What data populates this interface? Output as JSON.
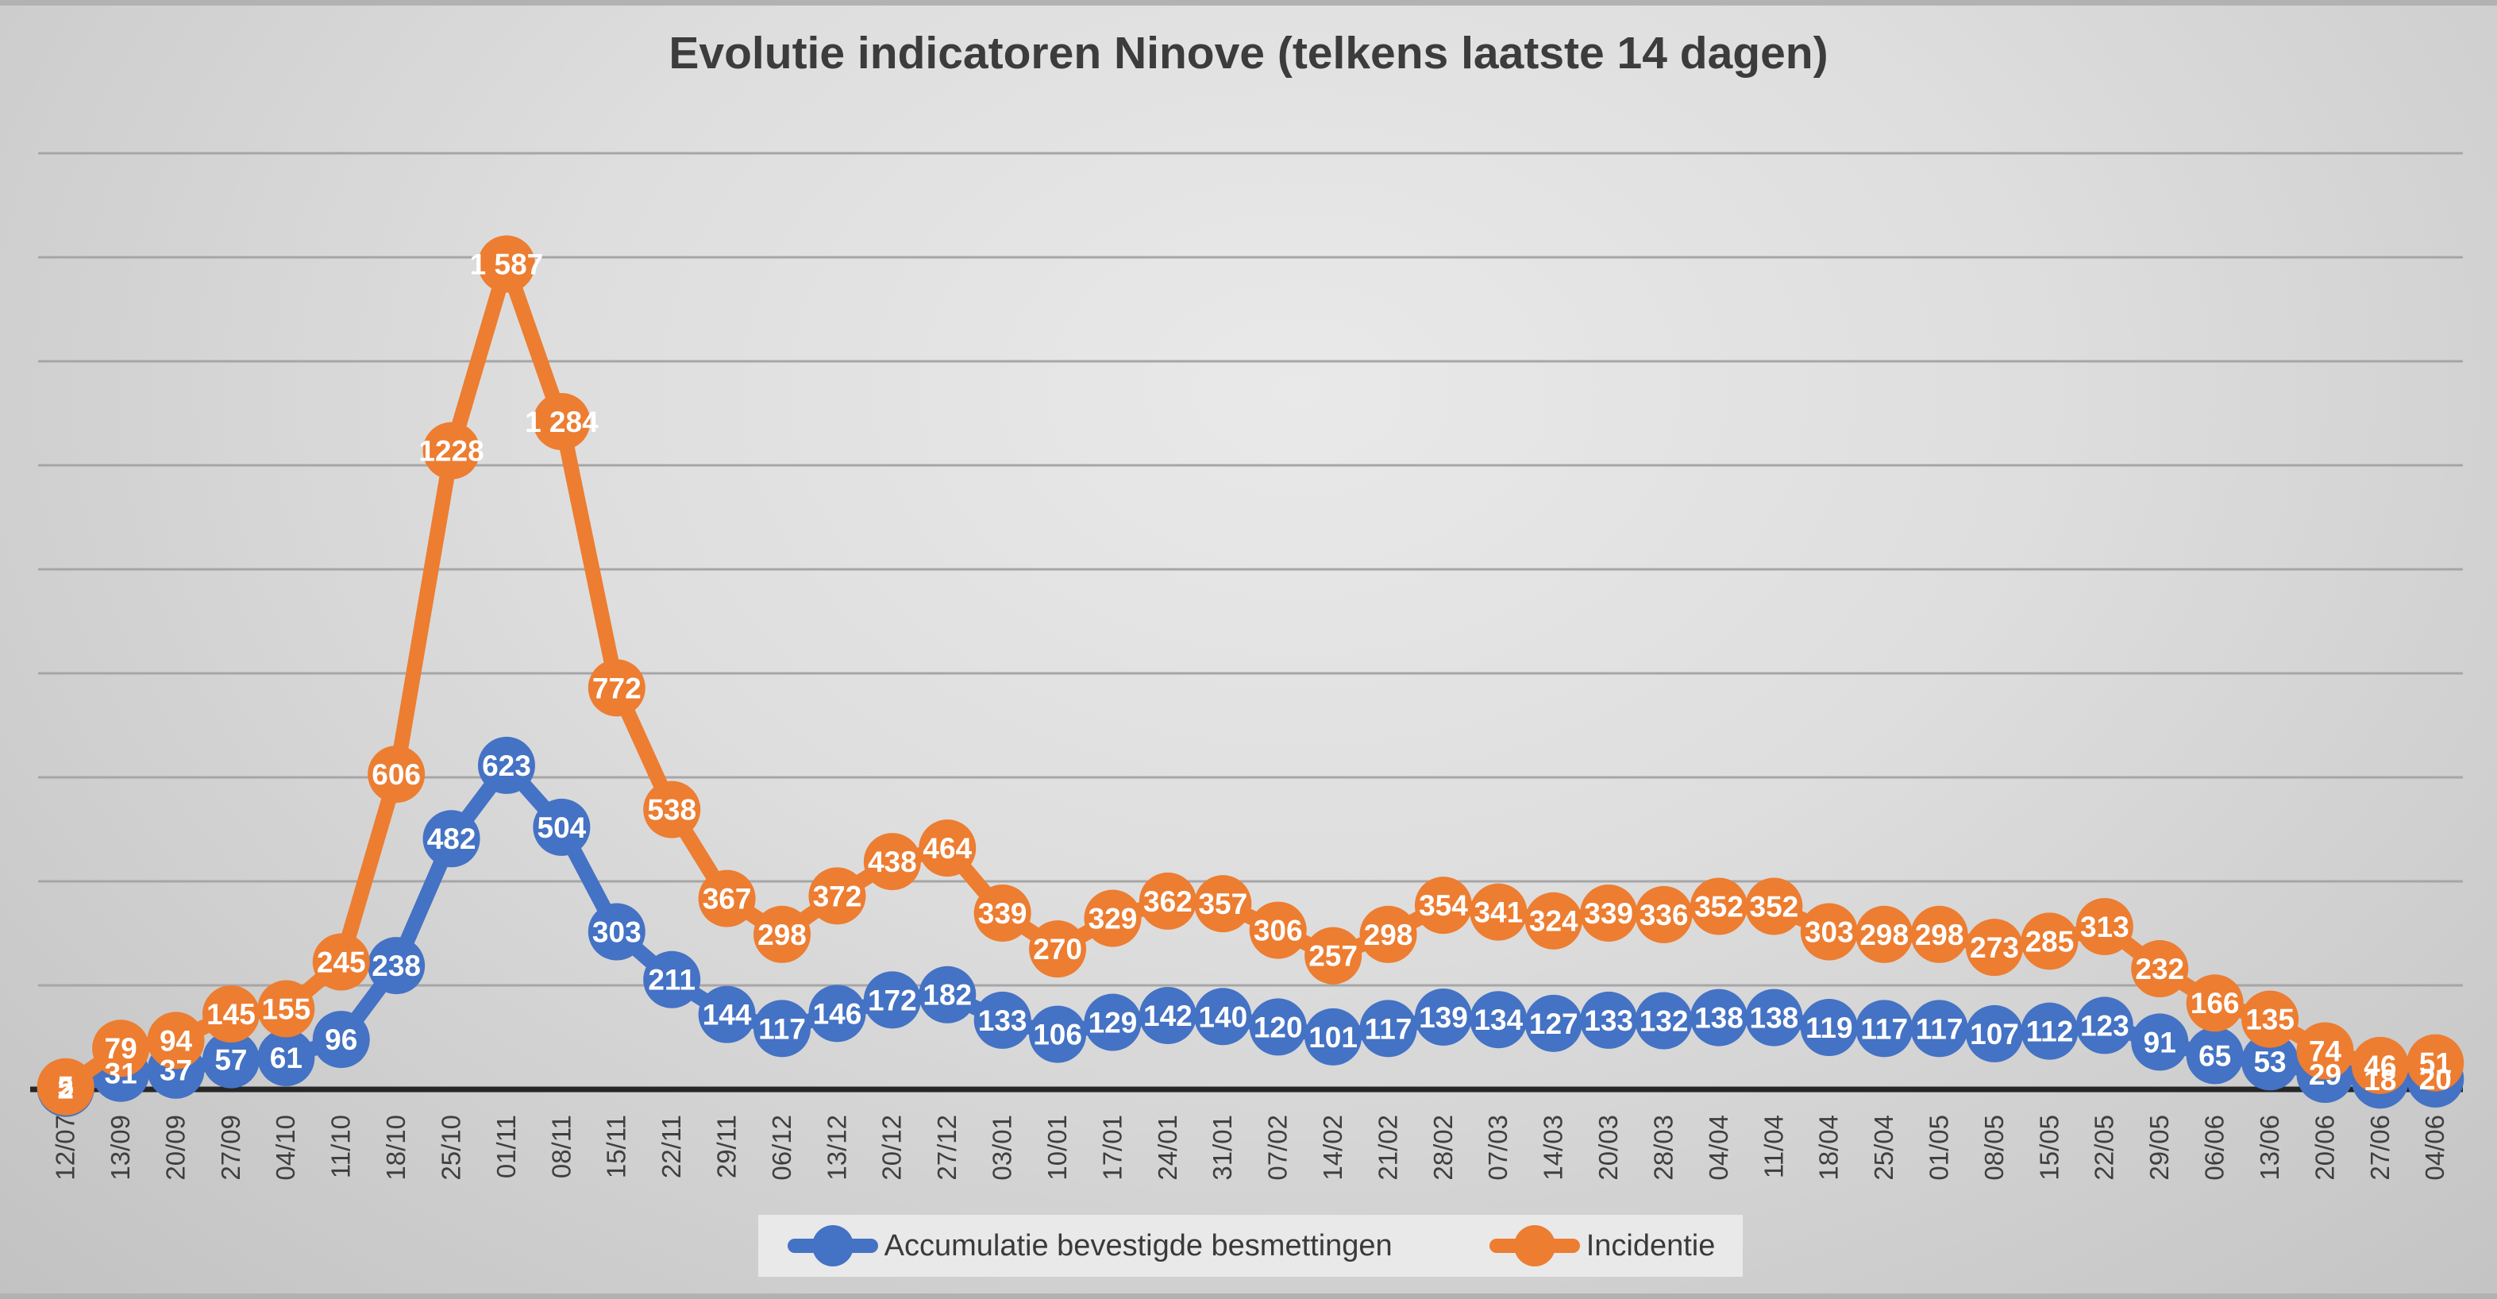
{
  "chart": {
    "title": "Evolutie indicatoren Ninove (telkens laatste 14 dagen)"
  },
  "legend": {
    "position": "bottom",
    "items": [
      {
        "label": "Accumulatie bevestigde besmettingen",
        "color": "#4472C4"
      },
      {
        "label": "Incidentie",
        "color": "#ED7D31"
      }
    ]
  },
  "colors": {
    "blue": "#4472C4",
    "orange": "#ED7D31",
    "grid": "#A6A6A6",
    "axis": "#262626",
    "tick_text": "#3f3f3f",
    "data_label_text": "#FFFFFF",
    "legend_bg": "#E9E9E9",
    "title_text": "#3C3C3C"
  },
  "chart_data": {
    "type": "line",
    "title": "Evolutie indicatoren Ninove (telkens laatste 14 dagen)",
    "xlabel": "",
    "ylabel": "",
    "ylim": [
      0,
      1800
    ],
    "y_gridline_step": 200,
    "grid": "on",
    "y_axis_labels": "hidden",
    "data_labels": "on",
    "legend_position": "bottom",
    "marker_style": "large-circle",
    "categories": [
      "12/07",
      "13/09",
      "20/09",
      "27/09",
      "04/10",
      "11/10",
      "18/10",
      "25/10",
      "01/11",
      "08/11",
      "15/11",
      "22/11",
      "29/11",
      "06/12",
      "13/12",
      "20/12",
      "27/12",
      "03/01",
      "10/01",
      "17/01",
      "24/01",
      "31/01",
      "07/02",
      "14/02",
      "21/02",
      "28/02",
      "07/03",
      "14/03",
      "20/03",
      "28/03",
      "04/04",
      "11/04",
      "18/04",
      "25/04",
      "01/05",
      "08/05",
      "15/05",
      "22/05",
      "29/05",
      "06/06",
      "13/06",
      "20/06",
      "27/06",
      "04/06"
    ],
    "series": [
      {
        "name": "Accumulatie bevestigde besmettingen",
        "color": "#4472C4",
        "values": [
          2,
          31,
          37,
          57,
          61,
          96,
          238,
          482,
          623,
          504,
          303,
          211,
          144,
          117,
          146,
          172,
          182,
          133,
          106,
          129,
          142,
          140,
          120,
          101,
          117,
          139,
          134,
          127,
          133,
          132,
          138,
          138,
          119,
          117,
          117,
          107,
          112,
          123,
          91,
          65,
          53,
          29,
          18,
          20
        ],
        "labels": [
          "2",
          "31",
          "37",
          "57",
          "61",
          "96",
          "238",
          "482",
          "623",
          "504",
          "303",
          "211",
          "144",
          "117",
          "146",
          "172",
          "182",
          "133",
          "106",
          "129",
          "142",
          "140",
          "120",
          "101",
          "117",
          "139",
          "134",
          "127",
          "133",
          "132",
          "138",
          "138",
          "119",
          "117",
          "117",
          "107",
          "112",
          "123",
          "91",
          "65",
          "53",
          "29",
          "18",
          "20"
        ]
      },
      {
        "name": "Incidentie",
        "color": "#ED7D31",
        "values": [
          5,
          79,
          94,
          145,
          155,
          245,
          606,
          1228,
          1587,
          1284,
          772,
          538,
          367,
          298,
          372,
          438,
          464,
          339,
          270,
          329,
          362,
          357,
          306,
          257,
          298,
          354,
          341,
          324,
          339,
          336,
          352,
          352,
          303,
          298,
          298,
          273,
          285,
          313,
          232,
          166,
          135,
          74,
          46,
          51
        ],
        "labels": [
          "5",
          "79",
          "94",
          "145",
          "155",
          "245",
          "606",
          "1228",
          "1 587",
          "1 284",
          "772",
          "538",
          "367",
          "298",
          "372",
          "438",
          "464",
          "339",
          "270",
          "329",
          "362",
          "357",
          "306",
          "257",
          "298",
          "354",
          "341",
          "324",
          "339",
          "336",
          "352",
          "352",
          "303",
          "298",
          "298",
          "273",
          "285",
          "313",
          "232",
          "166",
          "135",
          "74",
          "46",
          "51"
        ]
      }
    ]
  }
}
